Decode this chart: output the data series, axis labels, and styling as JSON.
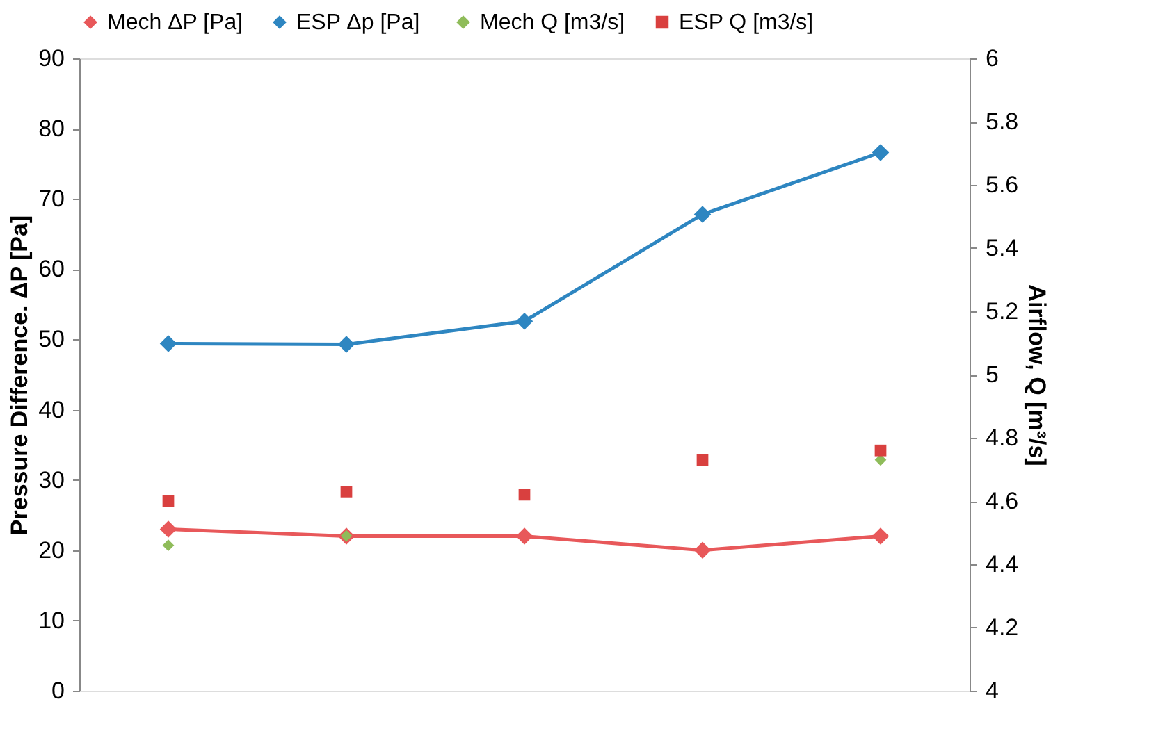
{
  "chart_data": {
    "type": "line",
    "categories": [
      null,
      null,
      null,
      null,
      null
    ],
    "ylabel": "Pressure Difference. ΔP  [Pa]",
    "y2label": "Airflow, Q [m³/s]",
    "ylim": [
      0,
      90
    ],
    "yticks": [
      0,
      10,
      20,
      30,
      40,
      50,
      60,
      70,
      80,
      90
    ],
    "y2lim": [
      4,
      6
    ],
    "y2ticks": [
      4,
      4.2,
      4.4,
      4.6,
      4.8,
      5,
      5.2,
      5.4,
      5.6,
      5.8,
      6
    ],
    "legend": "top",
    "grid": false,
    "line_style": "solid",
    "series": [
      {
        "name": "Mech ΔP [Pa]",
        "marker": "diamond",
        "color": "#e8585a",
        "values": [
          23,
          22,
          22,
          20,
          22
        ]
      },
      {
        "name": "ESP  Δp [Pa]",
        "marker": "diamond",
        "color": "#2e86c1",
        "values": [
          49.4,
          49.3,
          52.6,
          67.8,
          76.6
        ]
      },
      {
        "name": "Mech Q [m3/s]",
        "type": "scatter",
        "marker": "diamond",
        "axis": "y2",
        "color": "#8fbc5a",
        "values": [
          4.46,
          4.49,
          null,
          null,
          4.73
        ]
      },
      {
        "name": "ESP Q [m3/s]",
        "type": "scatter",
        "marker": "square",
        "axis": "y2",
        "color": "#d9403f",
        "values": [
          4.6,
          4.63,
          4.62,
          4.73,
          4.76
        ]
      }
    ]
  }
}
